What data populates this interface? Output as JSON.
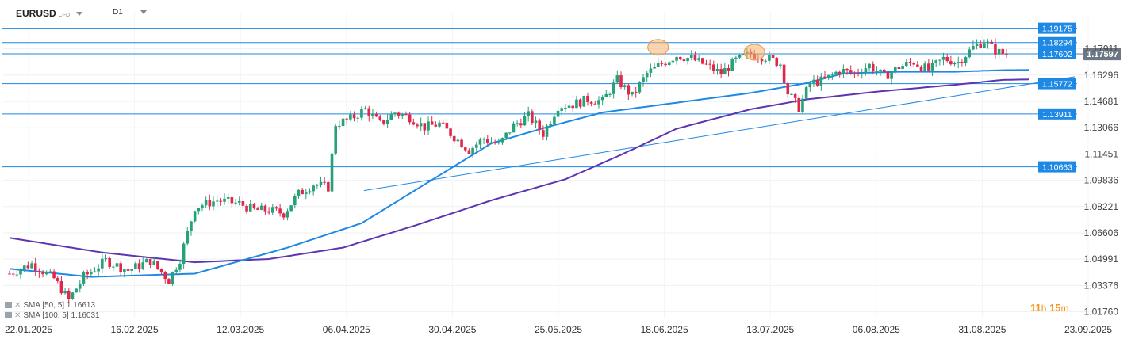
{
  "header": {
    "symbol": "EURUSD",
    "instrument_type": "CFD",
    "timeframe": "D1"
  },
  "indicators": [
    {
      "label": "SMA [50, 5]",
      "value": "1.16613",
      "color": "#1e88e5"
    },
    {
      "label": "SMA [100, 5]",
      "value": "1.16031",
      "color": "#5e35b1"
    }
  ],
  "countdown": {
    "hours": "11",
    "h_unit": "h",
    "minutes": "15",
    "m_unit": "m"
  },
  "colors": {
    "bull": "#26a17a",
    "bear": "#e0294a",
    "level": "#1e88e5",
    "sma50": "#1e88e5",
    "sma100": "#5e35b1",
    "current_price_bg": "#6b7785",
    "highlight": "#f7b26a"
  },
  "chart_data": {
    "type": "candlestick",
    "ylim": [
      1.0135,
      1.2013
    ],
    "y_ticks": [
      "1.01760",
      "1.03376",
      "1.04991",
      "1.06606",
      "1.08221",
      "1.09836",
      "1.11451",
      "1.13066",
      "1.14681",
      "1.16296",
      "1.17911"
    ],
    "x_ticks": [
      "22.01.2025",
      "16.02.2025",
      "12.03.2025",
      "06.04.2025",
      "30.04.2025",
      "25.05.2025",
      "18.06.2025",
      "13.07.2025",
      "06.08.2025",
      "31.08.2025",
      "23.09.2025"
    ],
    "current_price": "1.17597",
    "levels": [
      "1.19175",
      "1.18294",
      "1.17602",
      "1.15772",
      "1.13911",
      "1.10663"
    ],
    "trendlines": [
      {
        "from": [
          "06.04.2025",
          1.092
        ],
        "to": [
          "23.09.2025",
          1.162
        ]
      }
    ],
    "sma50": [
      [
        0,
        1.044
      ],
      [
        22,
        1.039
      ],
      [
        50,
        1.041
      ],
      [
        75,
        1.057
      ],
      [
        95,
        1.072
      ],
      [
        115,
        1.1
      ],
      [
        130,
        1.121
      ],
      [
        145,
        1.131
      ],
      [
        160,
        1.14
      ],
      [
        180,
        1.146
      ],
      [
        200,
        1.152
      ],
      [
        215,
        1.158
      ],
      [
        225,
        1.164
      ],
      [
        240,
        1.165
      ],
      [
        255,
        1.165
      ],
      [
        268,
        1.166
      ],
      [
        275,
        1.1661
      ]
    ],
    "sma100": [
      [
        0,
        1.063
      ],
      [
        25,
        1.054
      ],
      [
        50,
        1.048
      ],
      [
        70,
        1.05
      ],
      [
        90,
        1.057
      ],
      [
        110,
        1.071
      ],
      [
        130,
        1.086
      ],
      [
        150,
        1.099
      ],
      [
        165,
        1.114
      ],
      [
        180,
        1.13
      ],
      [
        200,
        1.142
      ],
      [
        215,
        1.148
      ],
      [
        235,
        1.153
      ],
      [
        255,
        1.157
      ],
      [
        268,
        1.16
      ],
      [
        275,
        1.1603
      ]
    ],
    "candle_anchors": [
      [
        0,
        1.041
      ],
      [
        6,
        1.047
      ],
      [
        12,
        1.038
      ],
      [
        16,
        1.025
      ],
      [
        20,
        1.039
      ],
      [
        26,
        1.049
      ],
      [
        32,
        1.043
      ],
      [
        38,
        1.049
      ],
      [
        43,
        1.037
      ],
      [
        46,
        1.05
      ],
      [
        50,
        1.082
      ],
      [
        56,
        1.086
      ],
      [
        62,
        1.084
      ],
      [
        66,
        1.08
      ],
      [
        70,
        1.08
      ],
      [
        74,
        1.078
      ],
      [
        78,
        1.09
      ],
      [
        82,
        1.096
      ],
      [
        86,
        1.094
      ],
      [
        88,
        1.133
      ],
      [
        92,
        1.136
      ],
      [
        96,
        1.142
      ],
      [
        100,
        1.133
      ],
      [
        104,
        1.14
      ],
      [
        108,
        1.137
      ],
      [
        112,
        1.131
      ],
      [
        116,
        1.133
      ],
      [
        120,
        1.125
      ],
      [
        124,
        1.117
      ],
      [
        128,
        1.124
      ],
      [
        132,
        1.12
      ],
      [
        136,
        1.132
      ],
      [
        140,
        1.138
      ],
      [
        144,
        1.127
      ],
      [
        148,
        1.144
      ],
      [
        152,
        1.145
      ],
      [
        156,
        1.148
      ],
      [
        160,
        1.147
      ],
      [
        164,
        1.16
      ],
      [
        168,
        1.15
      ],
      [
        172,
        1.164
      ],
      [
        176,
        1.17
      ],
      [
        180,
        1.175
      ],
      [
        184,
        1.173
      ],
      [
        188,
        1.169
      ],
      [
        192,
        1.164
      ],
      [
        196,
        1.172
      ],
      [
        200,
        1.176
      ],
      [
        204,
        1.174
      ],
      [
        208,
        1.17
      ],
      [
        210,
        1.152
      ],
      [
        213,
        1.143
      ],
      [
        216,
        1.158
      ],
      [
        220,
        1.16
      ],
      [
        224,
        1.166
      ],
      [
        228,
        1.164
      ],
      [
        232,
        1.169
      ],
      [
        236,
        1.162
      ],
      [
        240,
        1.168
      ],
      [
        244,
        1.171
      ],
      [
        248,
        1.166
      ],
      [
        252,
        1.173
      ],
      [
        256,
        1.171
      ],
      [
        260,
        1.18
      ],
      [
        263,
        1.184
      ],
      [
        266,
        1.178
      ],
      [
        268,
        1.176
      ]
    ],
    "highlights": [
      [
        175,
        1.18
      ],
      [
        201,
        1.177
      ]
    ]
  }
}
